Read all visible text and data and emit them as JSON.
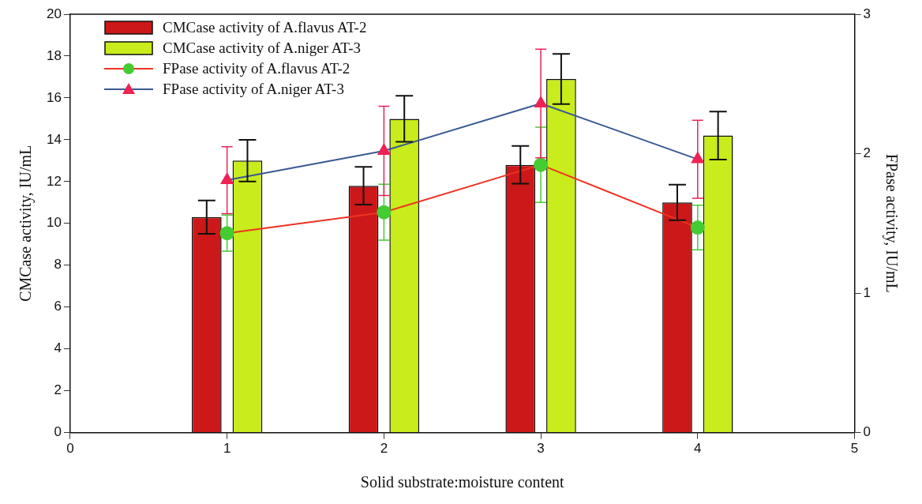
{
  "chart_data": {
    "type": "bar",
    "xlabel": "Solid substrate:moisture content",
    "ylabel": "CMCase activity, IU/mL",
    "y2label": "FPase activity, IU/mL",
    "x": [
      1,
      2,
      3,
      4
    ],
    "xlim": [
      0,
      5
    ],
    "xticks": [
      0,
      1,
      2,
      3,
      4,
      5
    ],
    "ylim": [
      0,
      20
    ],
    "yticks": [
      0,
      2,
      4,
      6,
      8,
      10,
      12,
      14,
      16,
      18,
      20
    ],
    "y2lim": [
      0,
      3
    ],
    "y2ticks": [
      0,
      1,
      2,
      3
    ],
    "legend": "top left",
    "grid": false,
    "series": [
      {
        "name": "CMCase activity of A.flavus AT-2",
        "color": "#cc1818",
        "values": [
          10.3,
          11.8,
          12.8,
          11.0
        ],
        "errors": [
          0.8,
          0.9,
          0.9,
          0.85
        ]
      },
      {
        "name": "CMCase activity of A.niger AT-3",
        "color": "#c8ec1c",
        "values": [
          13.0,
          15.0,
          16.9,
          14.2
        ],
        "errors": [
          1.0,
          1.1,
          1.2,
          1.15
        ]
      },
      {
        "name": "FPase activity of A.flavus AT-2",
        "type": "line",
        "axis": "y2",
        "color": "#ee3322",
        "colors": [
          "#44cc33",
          "#44cc33",
          "#44cc33",
          "#44cc33"
        ],
        "marker": "circle",
        "values": [
          1.43,
          1.58,
          1.92,
          1.47
        ],
        "errors": [
          0.13,
          0.2,
          0.27,
          0.16
        ]
      },
      {
        "name": "FPase activity of A.niger AT-3",
        "type": "line",
        "axis": "y2",
        "color": "#3a5a94",
        "colors": [
          "#ee2255",
          "#ee2255",
          "#ee2255",
          "#ee2255"
        ],
        "marker": "triangle",
        "values": [
          1.81,
          2.02,
          2.36,
          1.96
        ],
        "errors": [
          0.24,
          0.32,
          0.39,
          0.28
        ]
      }
    ]
  }
}
